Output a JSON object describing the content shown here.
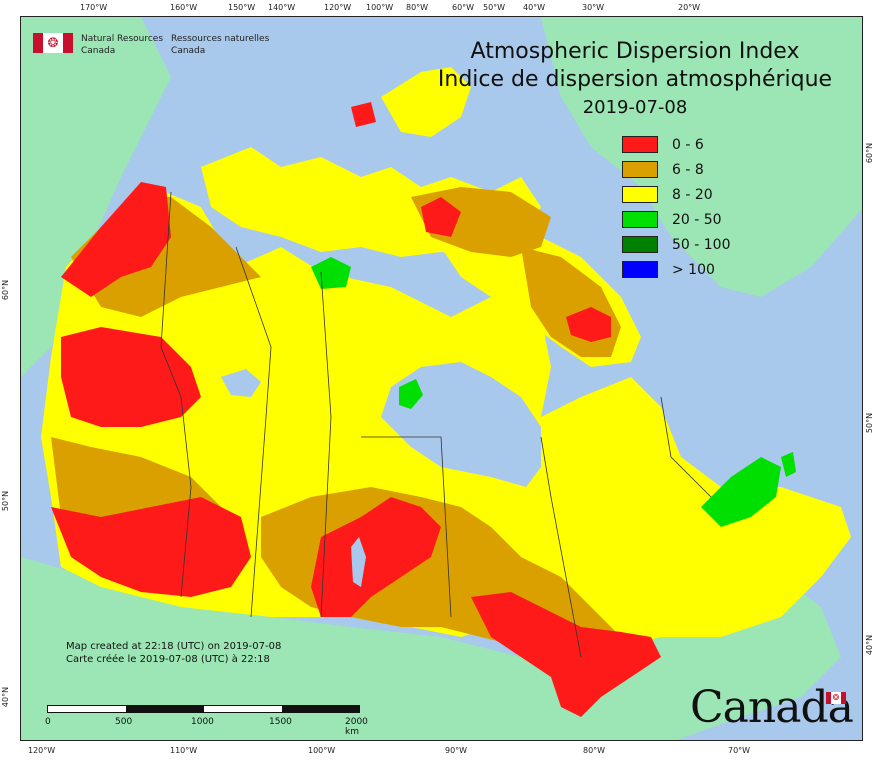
{
  "map": {
    "title_en": "Atmospheric Dispersion Index",
    "title_fr": "Indice de dispersion atmosphérique",
    "date": "2019-07-08",
    "legend": [
      {
        "label": "0 - 6",
        "color": "#ff1a1a"
      },
      {
        "label": "6 - 8",
        "color": "#d9a000"
      },
      {
        "label": "8 - 20",
        "color": "#ffff00"
      },
      {
        "label": "20 - 50",
        "color": "#00e000"
      },
      {
        "label": "50 - 100",
        "color": "#008000"
      },
      {
        "label": "> 100",
        "color": "#0000ff"
      }
    ],
    "water_color": "#a8c8ec",
    "land_color": "#9be6b4"
  },
  "agency": {
    "en_line1": "Natural Resources",
    "en_line2": "Canada",
    "fr_line1": "Ressources naturelles",
    "fr_line2": "Canada"
  },
  "credits": {
    "line1": "Map created at 22:18 (UTC) on 2019-07-08",
    "line2": "Carte créée le 2019-07-08 (UTC) à 22:18"
  },
  "scale": {
    "labels": [
      "0",
      "500",
      "1000",
      "1500",
      "2000  km"
    ]
  },
  "wordmark": "Canada",
  "axes": {
    "top": [
      "170°W",
      "160°W",
      "150°W",
      "140°W",
      "120°W",
      "100°W",
      "80°W",
      "60°W",
      "50°W",
      "40°W",
      "30°W",
      "20°W"
    ],
    "bottom": [
      "120°W",
      "110°W",
      "100°W",
      "90°W",
      "80°W",
      "70°W"
    ],
    "left": [
      "60°N",
      "50°N",
      "40°N"
    ],
    "right": [
      "60°N",
      "50°N",
      "40°N"
    ]
  }
}
